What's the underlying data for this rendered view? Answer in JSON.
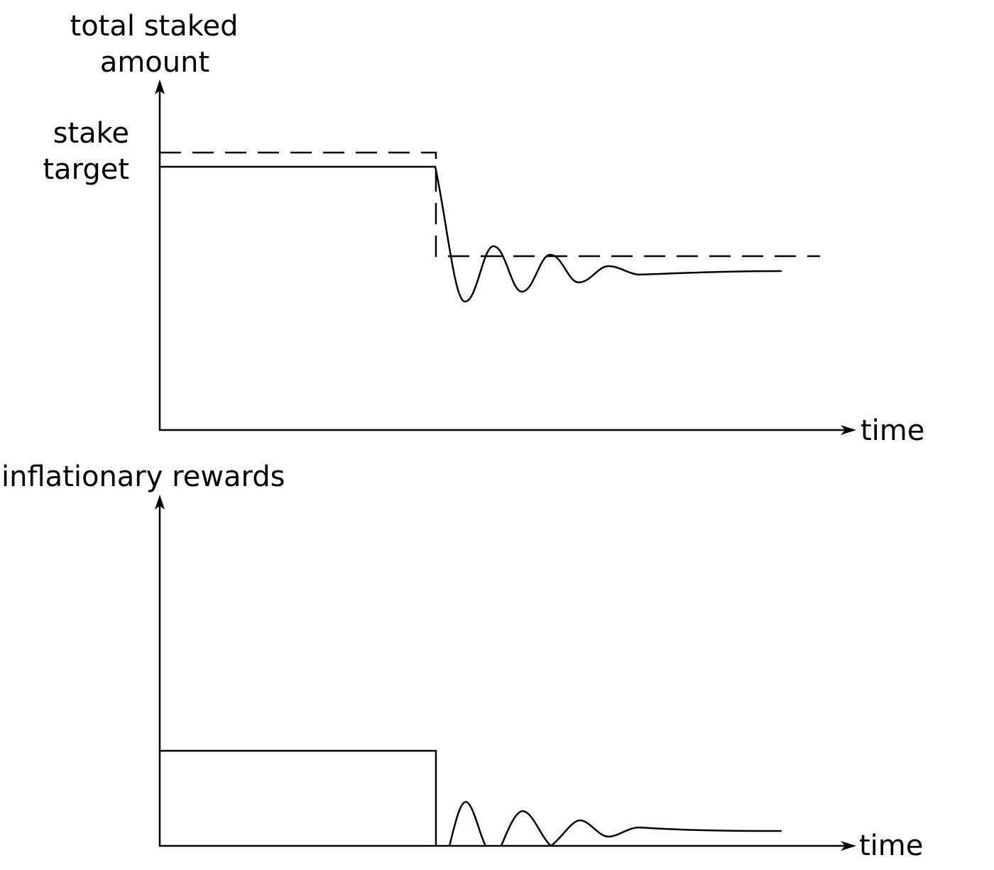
{
  "top_panel": {
    "y_axis_label_line1": "total staked",
    "y_axis_label_line2": "amount",
    "target_label_line1": "stake",
    "target_label_line2": "target",
    "x_axis_label": "time"
  },
  "bottom_panel": {
    "y_axis_label": "inflationary rewards",
    "x_axis_label": "time"
  }
}
